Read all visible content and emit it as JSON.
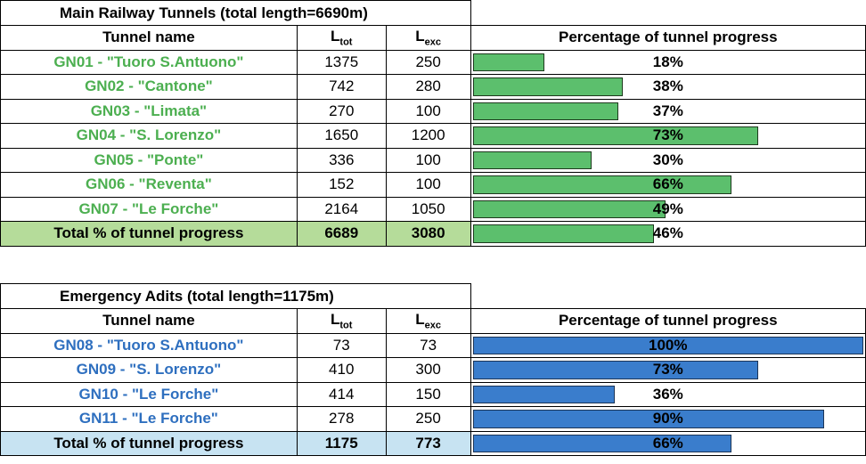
{
  "tables": [
    {
      "id": "main",
      "title": "Main Railway Tunnels (total length=6690m)",
      "headers": {
        "name": "Tunnel name",
        "ltot_base": "L",
        "ltot_sub": "tot",
        "lexc_base": "L",
        "lexc_sub": "exc",
        "pct": "Percentage of tunnel progress"
      },
      "bar_color": "#5cbf6d",
      "rows": [
        {
          "name": "GN01 - \"Tuoro S.Antuono\"",
          "ltot": "1375",
          "lexc": "250",
          "pct_label": "18%",
          "pct": 0.18
        },
        {
          "name": "GN02 - \"Cantone\"",
          "ltot": "742",
          "lexc": "280",
          "pct_label": "38%",
          "pct": 0.38
        },
        {
          "name": "GN03 - \"Limata\"",
          "ltot": "270",
          "lexc": "100",
          "pct_label": "37%",
          "pct": 0.37
        },
        {
          "name": "GN04 - \"S. Lorenzo\"",
          "ltot": "1650",
          "lexc": "1200",
          "pct_label": "73%",
          "pct": 0.73
        },
        {
          "name": "GN05 - \"Ponte\"",
          "ltot": "336",
          "lexc": "100",
          "pct_label": "30%",
          "pct": 0.3
        },
        {
          "name": "GN06 - \"Reventa\"",
          "ltot": "152",
          "lexc": "100",
          "pct_label": "66%",
          "pct": 0.66
        },
        {
          "name": "GN07 - \"Le Forche\"",
          "ltot": "2164",
          "lexc": "1050",
          "pct_label": "49%",
          "pct": 0.49
        }
      ],
      "total": {
        "label": "Total % of tunnel progress",
        "ltot": "6689",
        "lexc": "3080",
        "pct_label": "46%",
        "pct": 0.46
      }
    },
    {
      "id": "adits",
      "title": "Emergency Adits (total length=1175m)",
      "headers": {
        "name": "Tunnel name",
        "ltot_base": "L",
        "ltot_sub": "tot",
        "lexc_base": "L",
        "lexc_sub": "exc",
        "pct": "Percentage of tunnel progress"
      },
      "bar_color": "#3a7dcc",
      "rows": [
        {
          "name": "GN08 - \"Tuoro S.Antuono\"",
          "ltot": "73",
          "lexc": "73",
          "pct_label": "100%",
          "pct": 1.0
        },
        {
          "name": "GN09 - \"S. Lorenzo\"",
          "ltot": "410",
          "lexc": "300",
          "pct_label": "73%",
          "pct": 0.73
        },
        {
          "name": "GN10 - \"Le Forche\"",
          "ltot": "414",
          "lexc": "150",
          "pct_label": "36%",
          "pct": 0.36
        },
        {
          "name": "GN11 - \"Le Forche\"",
          "ltot": "278",
          "lexc": "250",
          "pct_label": "90%",
          "pct": 0.9
        }
      ],
      "total": {
        "label": "Total % of tunnel progress",
        "ltot": "1175",
        "lexc": "773",
        "pct_label": "66%",
        "pct": 0.66
      }
    }
  ]
}
